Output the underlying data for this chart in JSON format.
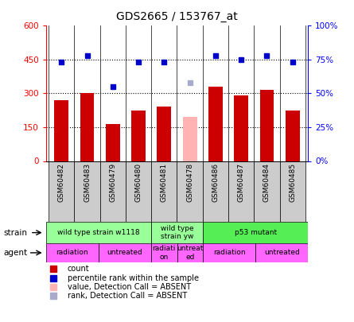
{
  "title": "GDS2665 / 153767_at",
  "samples": [
    "GSM60482",
    "GSM60483",
    "GSM60479",
    "GSM60480",
    "GSM60481",
    "GSM60478",
    "GSM60486",
    "GSM60487",
    "GSM60484",
    "GSM60485"
  ],
  "count_values": [
    270,
    300,
    165,
    225,
    240,
    null,
    330,
    290,
    315,
    225
  ],
  "count_absent": [
    null,
    null,
    null,
    null,
    null,
    195,
    null,
    null,
    null,
    null
  ],
  "rank_values": [
    73,
    78,
    55,
    73,
    73,
    null,
    78,
    75,
    78,
    73
  ],
  "rank_absent": [
    null,
    null,
    null,
    null,
    null,
    58,
    null,
    null,
    null,
    null
  ],
  "bar_color": "#cc0000",
  "bar_absent_color": "#ffb3b3",
  "dot_color": "#0000cc",
  "dot_absent_color": "#aaaacc",
  "left_ylim": [
    0,
    600
  ],
  "right_ylim": [
    0,
    100
  ],
  "left_yticks": [
    0,
    150,
    300,
    450,
    600
  ],
  "right_yticks": [
    0,
    25,
    50,
    75,
    100
  ],
  "right_yticklabels": [
    "0%",
    "25%",
    "50%",
    "75%",
    "100%"
  ],
  "hlines": [
    150,
    300,
    450
  ],
  "strain_groups": [
    {
      "label": "wild type strain w1118",
      "start": 0,
      "end": 4,
      "color": "#99ff99"
    },
    {
      "label": "wild type\nstrain yw",
      "start": 4,
      "end": 6,
      "color": "#99ff99"
    },
    {
      "label": "p53 mutant",
      "start": 6,
      "end": 10,
      "color": "#55ee55"
    }
  ],
  "agent_groups": [
    {
      "label": "radiation",
      "start": 0,
      "end": 2,
      "color": "#ff66ff"
    },
    {
      "label": "untreated",
      "start": 2,
      "end": 4,
      "color": "#ff66ff"
    },
    {
      "label": "radiati\non",
      "start": 4,
      "end": 5,
      "color": "#ff66ff"
    },
    {
      "label": "untreat\ned",
      "start": 5,
      "end": 6,
      "color": "#ff66ff"
    },
    {
      "label": "radiation",
      "start": 6,
      "end": 8,
      "color": "#ff66ff"
    },
    {
      "label": "untreated",
      "start": 8,
      "end": 10,
      "color": "#ff66ff"
    }
  ],
  "legend_items": [
    {
      "label": "count",
      "color": "#cc0000"
    },
    {
      "label": "percentile rank within the sample",
      "color": "#0000cc"
    },
    {
      "label": "value, Detection Call = ABSENT",
      "color": "#ffb3b3"
    },
    {
      "label": "rank, Detection Call = ABSENT",
      "color": "#aaaacc"
    }
  ],
  "strain_label": "strain",
  "agent_label": "agent",
  "xtick_bg": "#cccccc"
}
